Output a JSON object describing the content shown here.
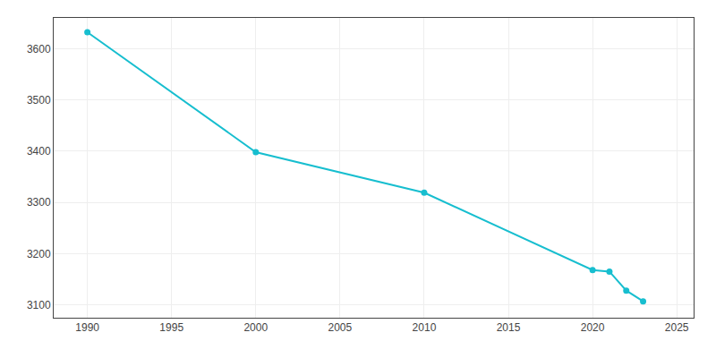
{
  "chart_data": {
    "type": "line",
    "x": [
      1990,
      2000,
      2010,
      2020,
      2021,
      2022,
      2023
    ],
    "values": [
      3632,
      3398,
      3319,
      3168,
      3165,
      3128,
      3107
    ],
    "color": "#17BECF",
    "marker": "o",
    "xlim": [
      1988,
      2026
    ],
    "ylim": [
      3075,
      3660
    ],
    "xticks": [
      1990,
      1995,
      2000,
      2005,
      2010,
      2015,
      2020,
      2025
    ],
    "yticks": [
      3100,
      3200,
      3300,
      3400,
      3500,
      3600
    ],
    "grid": true
  }
}
